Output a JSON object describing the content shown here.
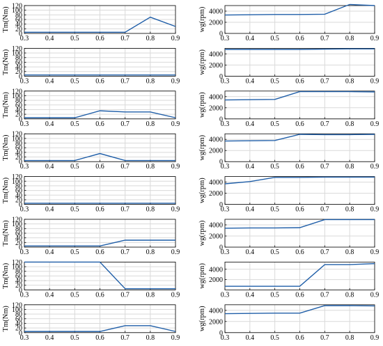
{
  "figure": {
    "line_color": "#1f5ea8",
    "grid_color": "#d9d9d9",
    "axis_color": "#000000"
  },
  "chart_data": [
    {
      "type": "line",
      "ylabel": "Tm(Nm)",
      "x": [
        0.3,
        0.4,
        0.5,
        0.6,
        0.7,
        0.8,
        0.9
      ],
      "xlim": [
        0.3,
        0.9
      ],
      "ylim": [
        0,
        120
      ],
      "yticks": [
        "0",
        "20",
        "40",
        "60",
        "80",
        "100",
        "120"
      ],
      "xticks": [
        "0.3",
        "0.4",
        "0.5",
        "0.6",
        "0.7",
        "0.8",
        "0.9"
      ],
      "series": [
        {
          "values": [
            5,
            5,
            5,
            5,
            5,
            70,
            30
          ]
        }
      ],
      "grid": true
    },
    {
      "type": "line",
      "ylabel": "wg(rpm)",
      "x": [
        0.3,
        0.4,
        0.5,
        0.6,
        0.7,
        0.8,
        0.9
      ],
      "xlim": [
        0.3,
        0.9
      ],
      "ylim": [
        0,
        5000
      ],
      "yticks": [
        "0",
        "2000",
        "4000"
      ],
      "xticks": [
        "0.3",
        "0.4",
        "0.5",
        "0.6",
        "0.7",
        "0.8",
        "0.9"
      ],
      "series": [
        {
          "values": [
            3300,
            3350,
            3400,
            3400,
            3450,
            5200,
            5000
          ]
        }
      ],
      "grid": true
    },
    {
      "type": "line",
      "ylabel": "Tm(Nm)",
      "x": [
        0.3,
        0.4,
        0.5,
        0.6,
        0.7,
        0.8,
        0.9
      ],
      "xlim": [
        0.3,
        0.9
      ],
      "ylim": [
        0,
        120
      ],
      "yticks": [
        "0",
        "20",
        "40",
        "60",
        "80",
        "100",
        "120"
      ],
      "xticks": [
        "0.3",
        "0.4",
        "0.5",
        "0.6",
        "0.7",
        "0.8",
        "0.9"
      ],
      "series": [
        {
          "values": [
            5,
            5,
            5,
            5,
            5,
            5,
            5
          ]
        }
      ],
      "grid": true
    },
    {
      "type": "line",
      "ylabel": "wg(rpm)",
      "x": [
        0.3,
        0.4,
        0.5,
        0.6,
        0.7,
        0.8,
        0.9
      ],
      "xlim": [
        0.3,
        0.9
      ],
      "ylim": [
        0,
        5000
      ],
      "yticks": [
        "0",
        "2000",
        "4000"
      ],
      "xticks": [
        "0.3",
        "0.4",
        "0.5",
        "0.6",
        "0.7",
        "0.8",
        "0.9"
      ],
      "series": [
        {
          "values": [
            4800,
            4800,
            4800,
            4800,
            4850,
            4900,
            4900
          ]
        }
      ],
      "grid": true
    },
    {
      "type": "line",
      "ylabel": "Tm(Nm)",
      "x": [
        0.3,
        0.4,
        0.5,
        0.6,
        0.7,
        0.8,
        0.9
      ],
      "xlim": [
        0.3,
        0.9
      ],
      "ylim": [
        0,
        120
      ],
      "yticks": [
        "0",
        "20",
        "40",
        "60",
        "80",
        "100",
        "120"
      ],
      "xticks": [
        "0.3",
        "0.4",
        "0.5",
        "0.6",
        "0.7",
        "0.8",
        "0.9"
      ],
      "series": [
        {
          "values": [
            5,
            5,
            5,
            35,
            30,
            30,
            5
          ]
        }
      ],
      "grid": true
    },
    {
      "type": "line",
      "ylabel": "wg(rpm)",
      "x": [
        0.3,
        0.4,
        0.5,
        0.6,
        0.7,
        0.8,
        0.9
      ],
      "xlim": [
        0.3,
        0.9
      ],
      "ylim": [
        0,
        5000
      ],
      "yticks": [
        "0",
        "2000",
        "4000"
      ],
      "xticks": [
        "0.3",
        "0.4",
        "0.5",
        "0.6",
        "0.7",
        "0.8",
        "0.9"
      ],
      "series": [
        {
          "values": [
            3400,
            3450,
            3500,
            4900,
            4900,
            4900,
            4850
          ]
        }
      ],
      "grid": true
    },
    {
      "type": "line",
      "ylabel": "Tm(Nm)",
      "x": [
        0.3,
        0.4,
        0.5,
        0.6,
        0.7,
        0.8,
        0.9
      ],
      "xlim": [
        0.3,
        0.9
      ],
      "ylim": [
        0,
        120
      ],
      "yticks": [
        "0",
        "20",
        "40",
        "60",
        "80",
        "100",
        "120"
      ],
      "xticks": [
        "0.3",
        "0.4",
        "0.5",
        "0.6",
        "0.7",
        "0.8",
        "0.9"
      ],
      "series": [
        {
          "values": [
            5,
            5,
            5,
            35,
            5,
            5,
            5
          ]
        }
      ],
      "grid": true
    },
    {
      "type": "line",
      "ylabel": "wg(rpm)",
      "x": [
        0.3,
        0.4,
        0.5,
        0.6,
        0.7,
        0.8,
        0.9
      ],
      "xlim": [
        0.3,
        0.9
      ],
      "ylim": [
        0,
        5000
      ],
      "yticks": [
        "0",
        "2000",
        "4000"
      ],
      "xticks": [
        "0.3",
        "0.4",
        "0.5",
        "0.6",
        "0.7",
        "0.8",
        "0.9"
      ],
      "series": [
        {
          "values": [
            3700,
            3750,
            3800,
            4900,
            4850,
            4850,
            4900
          ]
        }
      ],
      "grid": true
    },
    {
      "type": "line",
      "ylabel": "Tm(Nm)",
      "x": [
        0.3,
        0.4,
        0.5,
        0.6,
        0.7,
        0.8,
        0.9
      ],
      "xlim": [
        0.3,
        0.9
      ],
      "ylim": [
        0,
        120
      ],
      "yticks": [
        "0",
        "20",
        "40",
        "60",
        "80",
        "100",
        "120"
      ],
      "xticks": [
        "0.3",
        "0.4",
        "0.5",
        "0.6",
        "0.7",
        "0.8",
        "0.9"
      ],
      "series": [
        {
          "values": [
            5,
            5,
            5,
            5,
            5,
            5,
            5
          ]
        }
      ],
      "grid": true
    },
    {
      "type": "line",
      "ylabel": "wg(rpm)",
      "x": [
        0.3,
        0.4,
        0.5,
        0.6,
        0.7,
        0.8,
        0.9
      ],
      "xlim": [
        0.3,
        0.9
      ],
      "ylim": [
        0,
        5000
      ],
      "yticks": [
        "0",
        "2000",
        "4000"
      ],
      "xticks": [
        "0.3",
        "0.4",
        "0.5",
        "0.6",
        "0.7",
        "0.8",
        "0.9"
      ],
      "series": [
        {
          "values": [
            3700,
            4100,
            4850,
            4850,
            4900,
            4900,
            4900
          ]
        }
      ],
      "grid": true
    },
    {
      "type": "line",
      "ylabel": "Tm(Nm)",
      "x": [
        0.3,
        0.4,
        0.5,
        0.6,
        0.7,
        0.8,
        0.9
      ],
      "xlim": [
        0.3,
        0.9
      ],
      "ylim": [
        0,
        120
      ],
      "yticks": [
        "0",
        "20",
        "40",
        "60",
        "80",
        "100",
        "120"
      ],
      "xticks": [
        "0.3",
        "0.4",
        "0.5",
        "0.6",
        "0.7",
        "0.8",
        "0.9"
      ],
      "series": [
        {
          "values": [
            5,
            5,
            5,
            5,
            30,
            30,
            30
          ]
        }
      ],
      "grid": true
    },
    {
      "type": "line",
      "ylabel": "wg(rpm)",
      "x": [
        0.3,
        0.4,
        0.5,
        0.6,
        0.7,
        0.8,
        0.9
      ],
      "xlim": [
        0.3,
        0.9
      ],
      "ylim": [
        0,
        5000
      ],
      "yticks": [
        "0",
        "2000",
        "4000"
      ],
      "xticks": [
        "0.3",
        "0.4",
        "0.5",
        "0.6",
        "0.7",
        "0.8",
        "0.9"
      ],
      "series": [
        {
          "values": [
            3400,
            3450,
            3450,
            3500,
            4950,
            4950,
            4950
          ]
        }
      ],
      "grid": true
    },
    {
      "type": "line",
      "ylabel": "Tm(Nm)",
      "x": [
        0.3,
        0.4,
        0.5,
        0.6,
        0.7,
        0.8,
        0.9
      ],
      "xlim": [
        0.3,
        0.9
      ],
      "ylim": [
        0,
        120
      ],
      "yticks": [
        "0",
        "20",
        "40",
        "60",
        "80",
        "100",
        "120"
      ],
      "xticks": [
        "0.3",
        "0.4",
        "0.5",
        "0.6",
        "0.7",
        "0.8",
        "0.9"
      ],
      "series": [
        {
          "values": [
            120,
            120,
            120,
            120,
            5,
            5,
            5
          ]
        }
      ],
      "grid": true
    },
    {
      "type": "line",
      "ylabel": "wg(rpm)",
      "x": [
        0.3,
        0.4,
        0.5,
        0.6,
        0.7,
        0.8,
        0.9
      ],
      "xlim": [
        0.3,
        0.9
      ],
      "ylim": [
        0,
        5400
      ],
      "yticks": [
        "2000",
        "4000"
      ],
      "xticks": [
        "0.3",
        "0.4",
        "0.5",
        "0.6",
        "0.7",
        "0.8",
        "0.9"
      ],
      "series": [
        {
          "values": [
            700,
            700,
            700,
            700,
            4900,
            4900,
            5100
          ]
        }
      ],
      "grid": true
    },
    {
      "type": "line",
      "ylabel": "Tm(Nm)",
      "x": [
        0.3,
        0.4,
        0.5,
        0.6,
        0.7,
        0.8,
        0.9
      ],
      "xlim": [
        0.3,
        0.9
      ],
      "ylim": [
        0,
        120
      ],
      "yticks": [
        "0",
        "20",
        "40",
        "60",
        "80",
        "100",
        "120"
      ],
      "xticks": [
        "0.3",
        "0.4",
        "0.5",
        "0.6",
        "0.7",
        "0.8",
        "0.9"
      ],
      "series": [
        {
          "values": [
            5,
            5,
            5,
            5,
            30,
            30,
            5
          ]
        }
      ],
      "grid": true
    },
    {
      "type": "line",
      "ylabel": "wg(rpm)",
      "x": [
        0.3,
        0.4,
        0.5,
        0.6,
        0.7,
        0.8,
        0.9
      ],
      "xlim": [
        0.3,
        0.9
      ],
      "ylim": [
        0,
        5000
      ],
      "yticks": [
        "0",
        "2000",
        "4000"
      ],
      "xticks": [
        "0.3",
        "0.4",
        "0.5",
        "0.6",
        "0.7",
        "0.8",
        "0.9"
      ],
      "series": [
        {
          "values": [
            3400,
            3450,
            3500,
            3500,
            4850,
            4850,
            4800
          ]
        }
      ],
      "grid": true
    }
  ]
}
